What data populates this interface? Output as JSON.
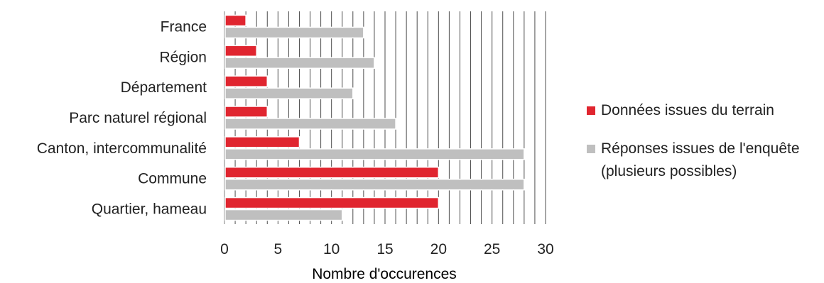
{
  "chart_data": {
    "type": "bar",
    "orientation": "horizontal",
    "categories": [
      "France",
      "Région",
      "Département",
      "Parc naturel régional",
      "Canton, intercommunalité",
      "Commune",
      "Quartier, hameau"
    ],
    "series": [
      {
        "name": "Données issues du terrain",
        "color": "#e0252f",
        "values": [
          2,
          3,
          4,
          4,
          7,
          20,
          20
        ]
      },
      {
        "name": "Réponses issues de l'enquête (plusieurs possibles)",
        "color": "#bfbfbf",
        "values": [
          13,
          14,
          12,
          16,
          28,
          28,
          11
        ]
      }
    ],
    "xlabel": "Nombre d'occurences",
    "xlim": [
      0,
      30
    ],
    "xticks": [
      "0",
      "5",
      "10",
      "15",
      "20",
      "25",
      "30"
    ],
    "grid": "vertical minor gridlines every 1 unit",
    "legend": "right"
  }
}
